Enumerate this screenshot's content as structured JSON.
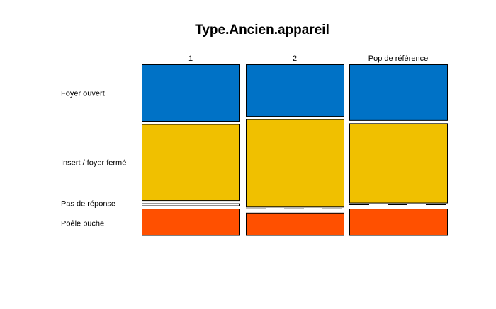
{
  "chart_data": {
    "type": "mosaic",
    "title": "Type.Ancien.appareil",
    "columns": [
      "1",
      "2",
      "Pop de référence"
    ],
    "categories": [
      "Foyer ouvert",
      "Insert / foyer fermé",
      "Pas de réponse",
      "Poêle buche"
    ],
    "series": [
      {
        "column": "1",
        "values": [
          0.35,
          0.47,
          0.015,
          0.165
        ]
      },
      {
        "column": "2",
        "values": [
          0.32,
          0.54,
          0.0,
          0.14
        ]
      },
      {
        "column": "Pop de référence",
        "values": [
          0.345,
          0.49,
          0.0,
          0.165
        ]
      }
    ],
    "colors": {
      "Foyer ouvert": "#0072C6",
      "Insert / foyer fermé": "#F0C000",
      "Pas de réponse": "#FFFFFF",
      "Poêle buche": "#FF5000"
    }
  }
}
